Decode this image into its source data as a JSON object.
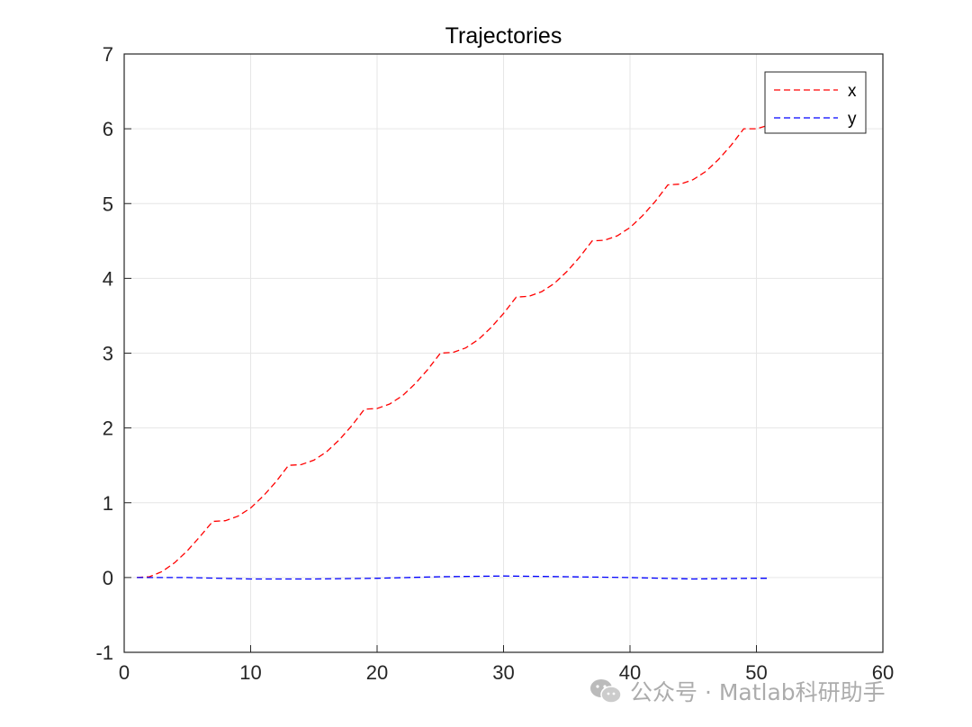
{
  "chart_data": {
    "type": "line",
    "title": "Trajectories",
    "xlabel": "",
    "ylabel": "",
    "xlim": [
      0,
      60
    ],
    "ylim": [
      -1,
      7
    ],
    "xticks": [
      "0",
      "10",
      "20",
      "30",
      "40",
      "50",
      "60"
    ],
    "yticks": [
      "-1",
      "0",
      "1",
      "2",
      "3",
      "4",
      "5",
      "6",
      "7"
    ],
    "grid": true,
    "legend_position": "top-right",
    "series": [
      {
        "name": "x",
        "color": "#ff0000",
        "line_style": "dashed",
        "x": [
          1,
          2,
          3,
          4,
          5,
          6,
          7,
          8,
          9,
          10,
          11,
          12,
          13,
          14,
          15,
          16,
          17,
          18,
          19,
          20,
          21,
          22,
          23,
          24,
          25,
          26,
          27,
          28,
          29,
          30,
          31,
          32,
          33,
          34,
          35,
          36,
          37,
          38,
          39,
          40,
          41,
          42,
          43,
          44,
          45,
          46,
          47,
          48,
          49,
          50,
          51
        ],
        "y": [
          0,
          0.01,
          0.08,
          0.2,
          0.36,
          0.55,
          0.75,
          0.76,
          0.82,
          0.93,
          1.09,
          1.28,
          1.5,
          1.51,
          1.57,
          1.68,
          1.84,
          2.03,
          2.25,
          2.26,
          2.32,
          2.43,
          2.59,
          2.78,
          3.0,
          3.01,
          3.07,
          3.18,
          3.34,
          3.53,
          3.75,
          3.76,
          3.82,
          3.93,
          4.09,
          4.28,
          4.5,
          4.51,
          4.57,
          4.68,
          4.84,
          5.03,
          5.25,
          5.26,
          5.32,
          5.43,
          5.59,
          5.78,
          6.0,
          6.0,
          6.05
        ]
      },
      {
        "name": "y",
        "color": "#0000ff",
        "line_style": "dashed",
        "x": [
          1,
          5,
          10,
          15,
          20,
          25,
          30,
          35,
          40,
          45,
          50,
          51
        ],
        "y": [
          0.0,
          0.0,
          -0.02,
          -0.02,
          -0.01,
          0.01,
          0.02,
          0.01,
          0.0,
          -0.02,
          -0.01,
          -0.01
        ]
      }
    ]
  },
  "watermark": {
    "text": "公众号 · Matlab科研助手",
    "icon": "wechat-icon"
  }
}
